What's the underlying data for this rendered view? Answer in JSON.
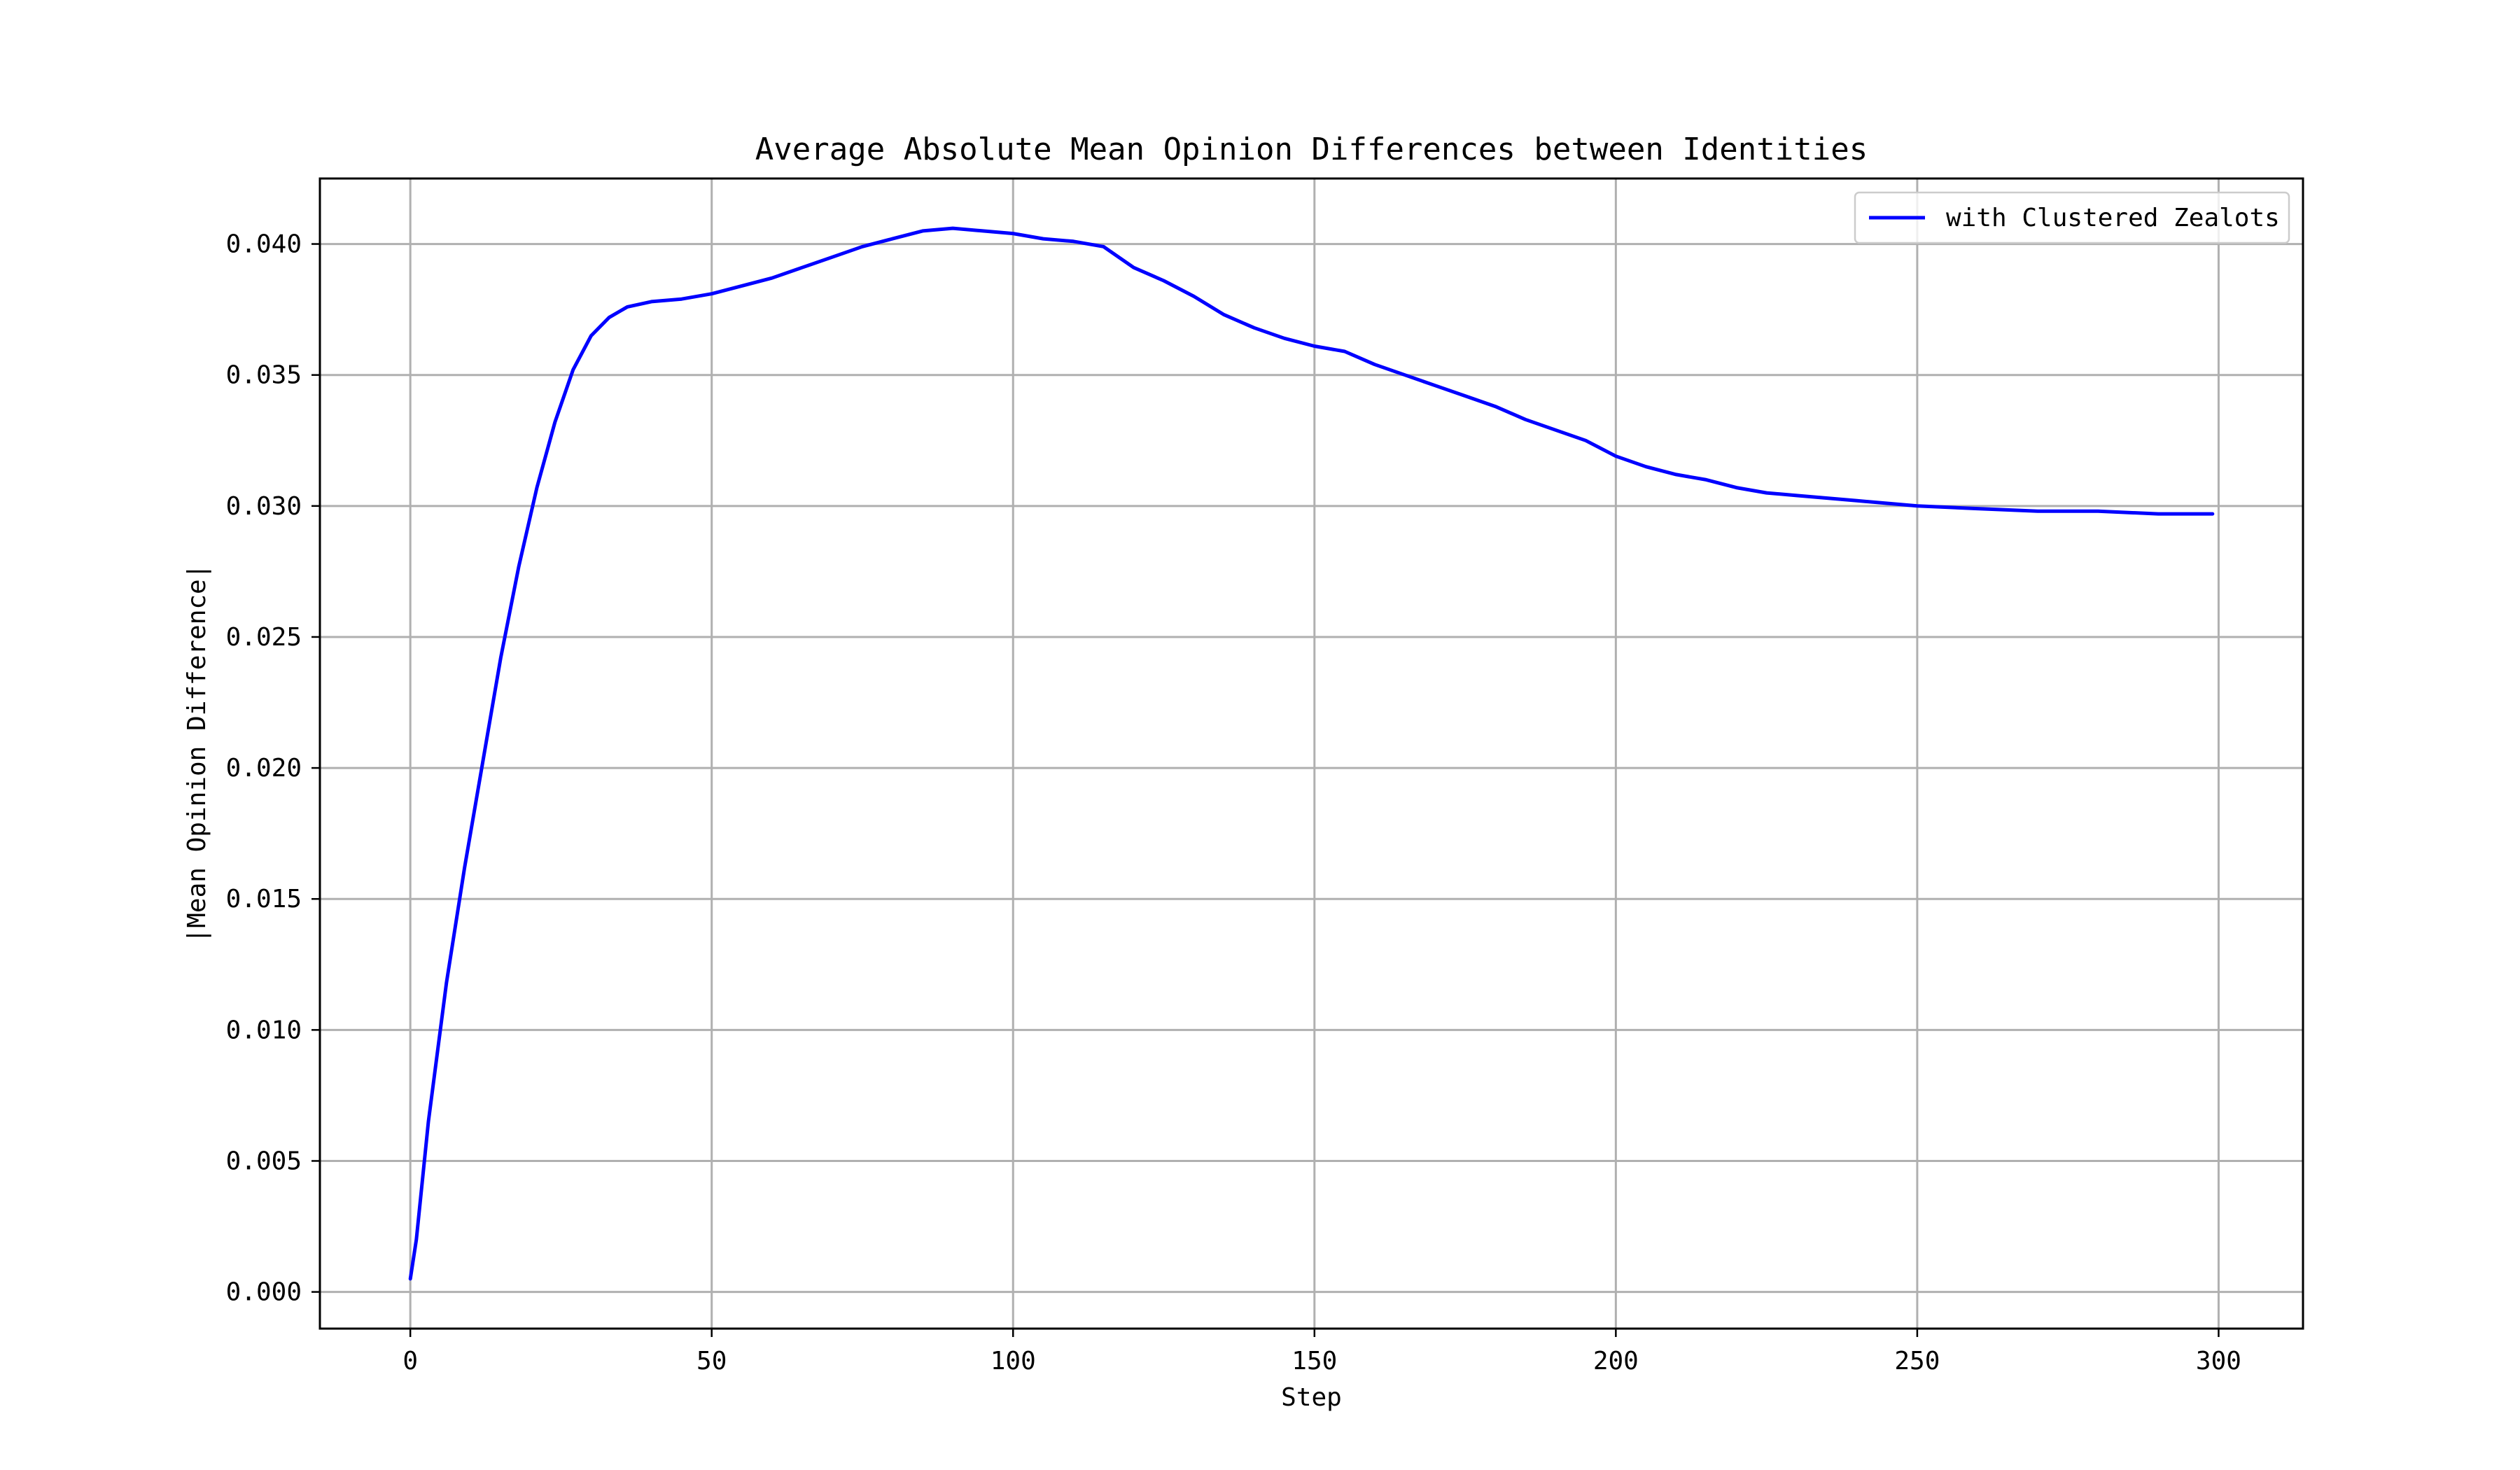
{
  "chart_data": {
    "type": "line",
    "title": "Average Absolute Mean Opinion Differences between Identities",
    "xlabel": "Step",
    "ylabel": "|Mean Opinion Difference|",
    "xlim": [
      -15,
      314
    ],
    "ylim": [
      -0.0014,
      0.0425
    ],
    "xticks": [
      0,
      50,
      100,
      150,
      200,
      250,
      300
    ],
    "xtick_labels": [
      "0",
      "50",
      "100",
      "150",
      "200",
      "250",
      "300"
    ],
    "yticks": [
      0,
      0.005,
      0.01,
      0.015,
      0.02,
      0.025,
      0.03,
      0.035,
      0.04
    ],
    "ytick_labels": [
      "0.000",
      "0.005",
      "0.010",
      "0.015",
      "0.020",
      "0.025",
      "0.030",
      "0.035",
      "0.040"
    ],
    "grid": true,
    "legend_position": "top-right",
    "series": [
      {
        "name": "with Clustered Zealots",
        "color": "#0000ff",
        "x": [
          0,
          1,
          3,
          6,
          9,
          12,
          15,
          18,
          21,
          24,
          27,
          30,
          33,
          36,
          40,
          45,
          50,
          55,
          60,
          65,
          70,
          75,
          80,
          85,
          90,
          95,
          100,
          105,
          110,
          115,
          120,
          125,
          130,
          135,
          140,
          145,
          150,
          155,
          160,
          165,
          170,
          175,
          180,
          185,
          190,
          195,
          200,
          205,
          210,
          215,
          220,
          225,
          230,
          240,
          250,
          260,
          270,
          280,
          290,
          299
        ],
        "y": [
          0.0005,
          0.002,
          0.0065,
          0.0118,
          0.0162,
          0.0202,
          0.0242,
          0.0277,
          0.0307,
          0.0332,
          0.0352,
          0.0365,
          0.0372,
          0.0376,
          0.0378,
          0.0379,
          0.0381,
          0.0384,
          0.0387,
          0.0391,
          0.0395,
          0.0399,
          0.0402,
          0.0405,
          0.0406,
          0.0405,
          0.0404,
          0.0402,
          0.0401,
          0.0399,
          0.0391,
          0.0386,
          0.038,
          0.0373,
          0.0368,
          0.0364,
          0.0361,
          0.0359,
          0.0354,
          0.035,
          0.0346,
          0.0342,
          0.0338,
          0.0333,
          0.0329,
          0.0325,
          0.0319,
          0.0315,
          0.0312,
          0.031,
          0.0307,
          0.0305,
          0.0304,
          0.0302,
          0.03,
          0.0299,
          0.0298,
          0.0298,
          0.0297,
          0.0297
        ]
      }
    ]
  }
}
